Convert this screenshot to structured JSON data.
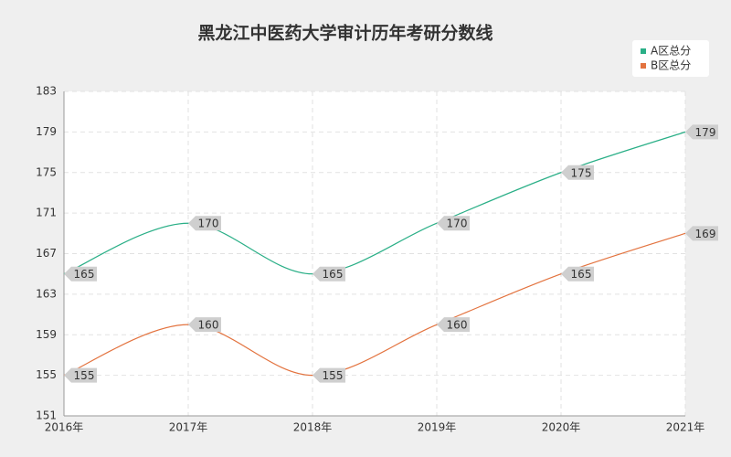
{
  "chart_data": {
    "type": "line",
    "title": "黑龙江中医药大学审计历年考研分数线",
    "categories": [
      "2016年",
      "2017年",
      "2018年",
      "2019年",
      "2020年",
      "2021年"
    ],
    "series": [
      {
        "name": "A区总分",
        "color": "#2aaf87",
        "values": [
          165,
          170,
          165,
          170,
          175,
          179
        ]
      },
      {
        "name": "B区总分",
        "color": "#e3733f",
        "values": [
          155,
          160,
          155,
          160,
          165,
          169
        ]
      }
    ],
    "ylim": [
      151,
      183
    ],
    "yticks": [
      151,
      155,
      159,
      163,
      167,
      171,
      175,
      179,
      183
    ],
    "grid": true,
    "legend": "top-right",
    "smooth": true
  }
}
